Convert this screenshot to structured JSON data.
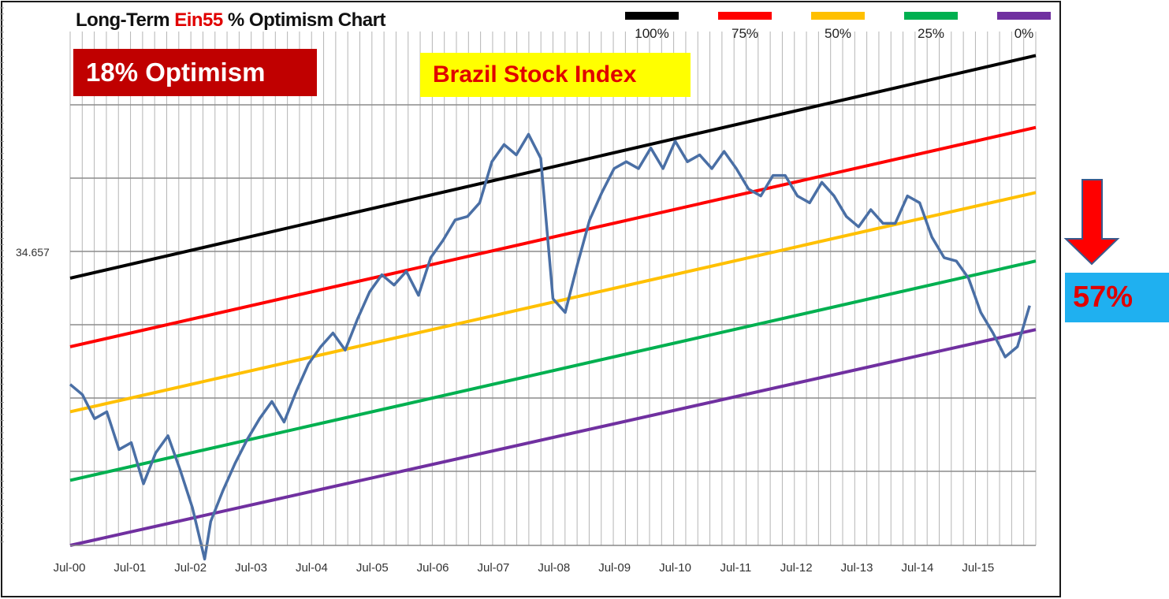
{
  "title": {
    "prefix": "Long-Term ",
    "brand": "Ein55",
    "suffix": " % Optimism Chart"
  },
  "badges": {
    "optimism": "18% Optimism",
    "index_name": "Brazil Stock Index",
    "current_pct": "57%"
  },
  "colors": {
    "line_100": "#000000",
    "line_75": "#ff0000",
    "line_50": "#ffc000",
    "line_25": "#00b050",
    "line_0": "#7030a0",
    "price": "#4a6fa5",
    "optimism_badge": "#c00000",
    "index_badge": "#ffff00",
    "pct_badge": "#1fb0f0",
    "arrow": "#ff0000"
  },
  "chart_data": {
    "type": "line",
    "title": "Long-Term Ein55 % Optimism Chart",
    "xlabel": "",
    "ylabel": "",
    "y_label_value": "34.657",
    "x_ticks": [
      "Jul-00",
      "Jul-01",
      "Jul-02",
      "Jul-03",
      "Jul-04",
      "Jul-05",
      "Jul-06",
      "Jul-07",
      "Jul-08",
      "Jul-09",
      "Jul-10",
      "Jul-11",
      "Jul-12",
      "Jul-13",
      "Jul-14",
      "Jul-15"
    ],
    "bands": [
      {
        "name": "100%",
        "start_pct": 38,
        "end_pct": 103
      },
      {
        "name": "75%",
        "start_pct": 18,
        "end_pct": 82
      },
      {
        "name": "50%",
        "start_pct": -1,
        "end_pct": 63
      },
      {
        "name": "25%",
        "start_pct": -21,
        "end_pct": 43
      },
      {
        "name": "0%",
        "start_pct": -40,
        "end_pct": 23
      }
    ],
    "series": [
      {
        "name": "Brazil Stock Index",
        "x": [
          2000.5,
          2000.7,
          2000.9,
          2001.1,
          2001.3,
          2001.5,
          2001.7,
          2001.9,
          2002.1,
          2002.3,
          2002.5,
          2002.7,
          2002.8,
          2003.0,
          2003.2,
          2003.4,
          2003.6,
          2003.8,
          2004.0,
          2004.2,
          2004.4,
          2004.6,
          2004.8,
          2005.0,
          2005.2,
          2005.4,
          2005.6,
          2005.8,
          2006.0,
          2006.2,
          2006.4,
          2006.6,
          2006.8,
          2007.0,
          2007.2,
          2007.4,
          2007.6,
          2007.8,
          2008.0,
          2008.2,
          2008.4,
          2008.6,
          2008.8,
          2009.0,
          2009.2,
          2009.4,
          2009.6,
          2009.8,
          2010.0,
          2010.2,
          2010.4,
          2010.6,
          2010.8,
          2011.0,
          2011.2,
          2011.4,
          2011.6,
          2011.8,
          2012.0,
          2012.2,
          2012.4,
          2012.6,
          2012.8,
          2013.0,
          2013.2,
          2013.4,
          2013.6,
          2013.8,
          2014.0,
          2014.2,
          2014.4,
          2014.6,
          2014.8,
          2015.0,
          2015.2,
          2015.4,
          2015.6,
          2015.8,
          2016.0,
          2016.2
        ],
        "y": [
          7,
          4,
          -3,
          -1,
          -12,
          -10,
          -22,
          -13,
          -8,
          -18,
          -29,
          -44,
          -33,
          -24,
          -16,
          -9,
          -3,
          2,
          -4,
          5,
          13,
          18,
          22,
          17,
          26,
          34,
          39,
          36,
          40,
          33,
          44,
          49,
          55,
          56,
          60,
          72,
          77,
          74,
          80,
          73,
          32,
          28,
          42,
          55,
          63,
          70,
          72,
          70,
          76,
          70,
          78,
          72,
          74,
          70,
          75,
          70,
          64,
          62,
          68,
          68,
          62,
          60,
          66,
          62,
          56,
          53,
          58,
          54,
          54,
          62,
          60,
          50,
          44,
          43,
          38,
          28,
          22,
          15,
          18,
          30
        ]
      }
    ],
    "xlim": [
      2000.5,
      2016.3
    ],
    "grid": "on",
    "legend_position": "top"
  }
}
